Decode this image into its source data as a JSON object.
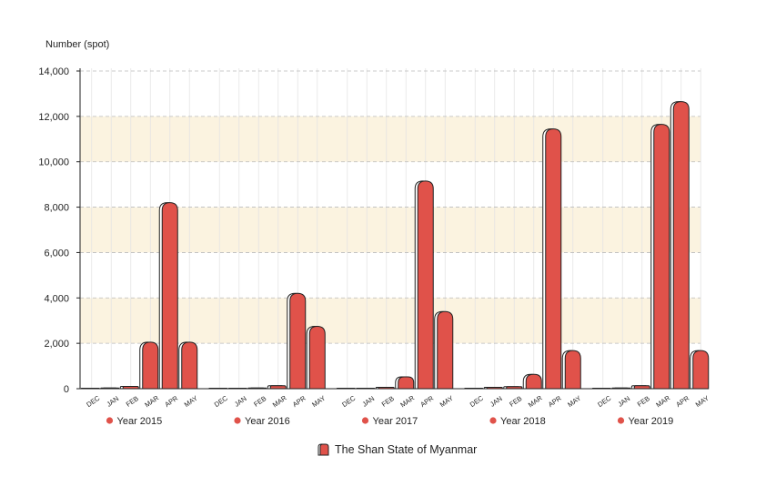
{
  "chart_data": {
    "type": "bar",
    "ylabel": "Number (spot)",
    "ylim": [
      0,
      14000
    ],
    "yticks": [
      0,
      2000,
      4000,
      6000,
      8000,
      10000,
      12000,
      14000
    ],
    "ytick_labels": [
      "0",
      "2,000",
      "4,000",
      "6,000",
      "8,000",
      "10,000",
      "12,000",
      "14,000"
    ],
    "categories": [
      "DEC",
      "JAN",
      "FEB",
      "MAR",
      "APR",
      "MAY"
    ],
    "groups": [
      {
        "name": "Year 2015",
        "values": [
          20,
          30,
          100,
          2050,
          8200,
          2050
        ]
      },
      {
        "name": "Year 2016",
        "values": [
          20,
          20,
          30,
          130,
          4200,
          2750
        ]
      },
      {
        "name": "Year 2017",
        "values": [
          20,
          20,
          60,
          520,
          9150,
          3400
        ]
      },
      {
        "name": "Year 2018",
        "values": [
          20,
          60,
          90,
          630,
          11450,
          1680
        ]
      },
      {
        "name": "Year 2019",
        "values": [
          20,
          30,
          130,
          11650,
          12650,
          1680
        ]
      }
    ],
    "series_legend": "The Shan State of Myanmar",
    "grid": true,
    "colors": {
      "bar": "#e0524a",
      "bar_shadow": "#ffffff",
      "bar_stroke": "#222222",
      "band": "#fbf3e0",
      "gridline": "#bbbbbb",
      "dot": "#e0524a"
    }
  }
}
